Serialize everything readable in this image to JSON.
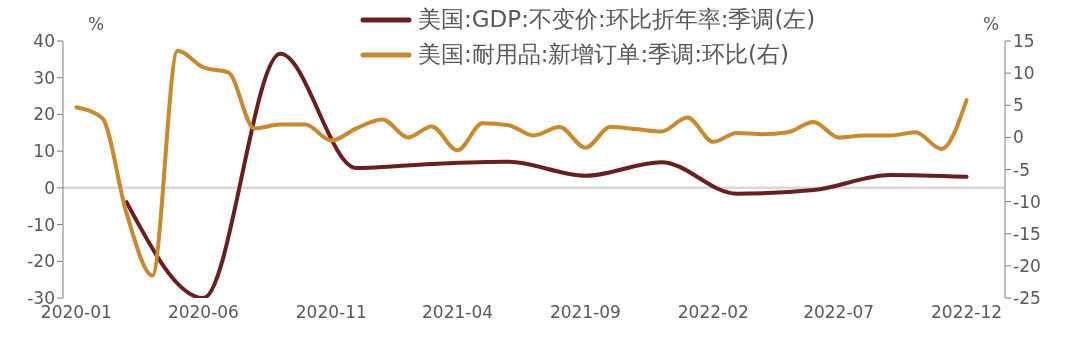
{
  "chart_data": {
    "type": "line",
    "ylabel": "%",
    "y2label": "%",
    "legend": "top",
    "xlim": [
      "2019-12-16",
      "2023-01-16"
    ],
    "xticks": [
      "2020-01",
      "2020-06",
      "2020-11",
      "2021-04",
      "2021-09",
      "2022-02",
      "2022-07",
      "2022-12"
    ],
    "ylim": [
      -30,
      40
    ],
    "yticks": [
      -30,
      -20,
      -10,
      0,
      10,
      20,
      30,
      40
    ],
    "y2lim": [
      -25,
      15
    ],
    "y2ticks": [
      -25,
      -20,
      -15,
      -10,
      -5,
      0,
      5,
      10,
      15
    ],
    "ref_lines": [
      {
        "axis": "y",
        "value": 0,
        "color": "#d9d9d9"
      }
    ],
    "series": [
      {
        "name": "美国:GDP:不变价:环比折年率:季调(左)",
        "color": "#6b1e1e",
        "x": [
          "2020-03",
          "2020-06",
          "2020-09",
          "2020-12",
          "2021-03",
          "2021-06",
          "2021-09",
          "2021-12",
          "2022-03",
          "2022-06",
          "2022-09",
          "2022-12"
        ],
        "values": [
          -3.9,
          -30,
          36.5,
          5.4,
          6.5,
          7.1,
          3.3,
          7.0,
          -1.6,
          -0.6,
          3.5,
          3.0
        ]
      },
      {
        "name": "美国:耐用品:新增订单:季调:环比(右)",
        "color": "#c98a2e",
        "axis": "y2",
        "x": [
          "2020-01",
          "2020-02",
          "2020-03",
          "2020-04",
          "2020-05",
          "2020-06",
          "2020-07",
          "2020-08",
          "2020-09",
          "2020-10",
          "2020-11",
          "2020-12",
          "2021-01",
          "2021-02",
          "2021-03",
          "2021-04",
          "2021-05",
          "2021-06",
          "2021-07",
          "2021-08",
          "2021-09",
          "2021-10",
          "2021-11",
          "2021-12",
          "2022-01",
          "2022-02",
          "2022-03",
          "2022-04",
          "2022-05",
          "2022-06",
          "2022-07",
          "2022-08",
          "2022-09",
          "2022-10",
          "2022-11",
          "2022-12"
        ],
        "values": [
          4.7,
          3.0,
          -11.8,
          -21.5,
          13.5,
          10.9,
          10.1,
          1.4,
          2.0,
          2.0,
          -0.5,
          1.4,
          2.8,
          0,
          1.7,
          -2.0,
          2.2,
          1.9,
          0.3,
          1.6,
          -1.6,
          1.6,
          1.3,
          0.9,
          3.1,
          -0.7,
          0.7,
          0.5,
          0.8,
          2.4,
          0,
          0.3,
          0.3,
          0.8,
          -1.8,
          5.8
        ]
      }
    ]
  }
}
